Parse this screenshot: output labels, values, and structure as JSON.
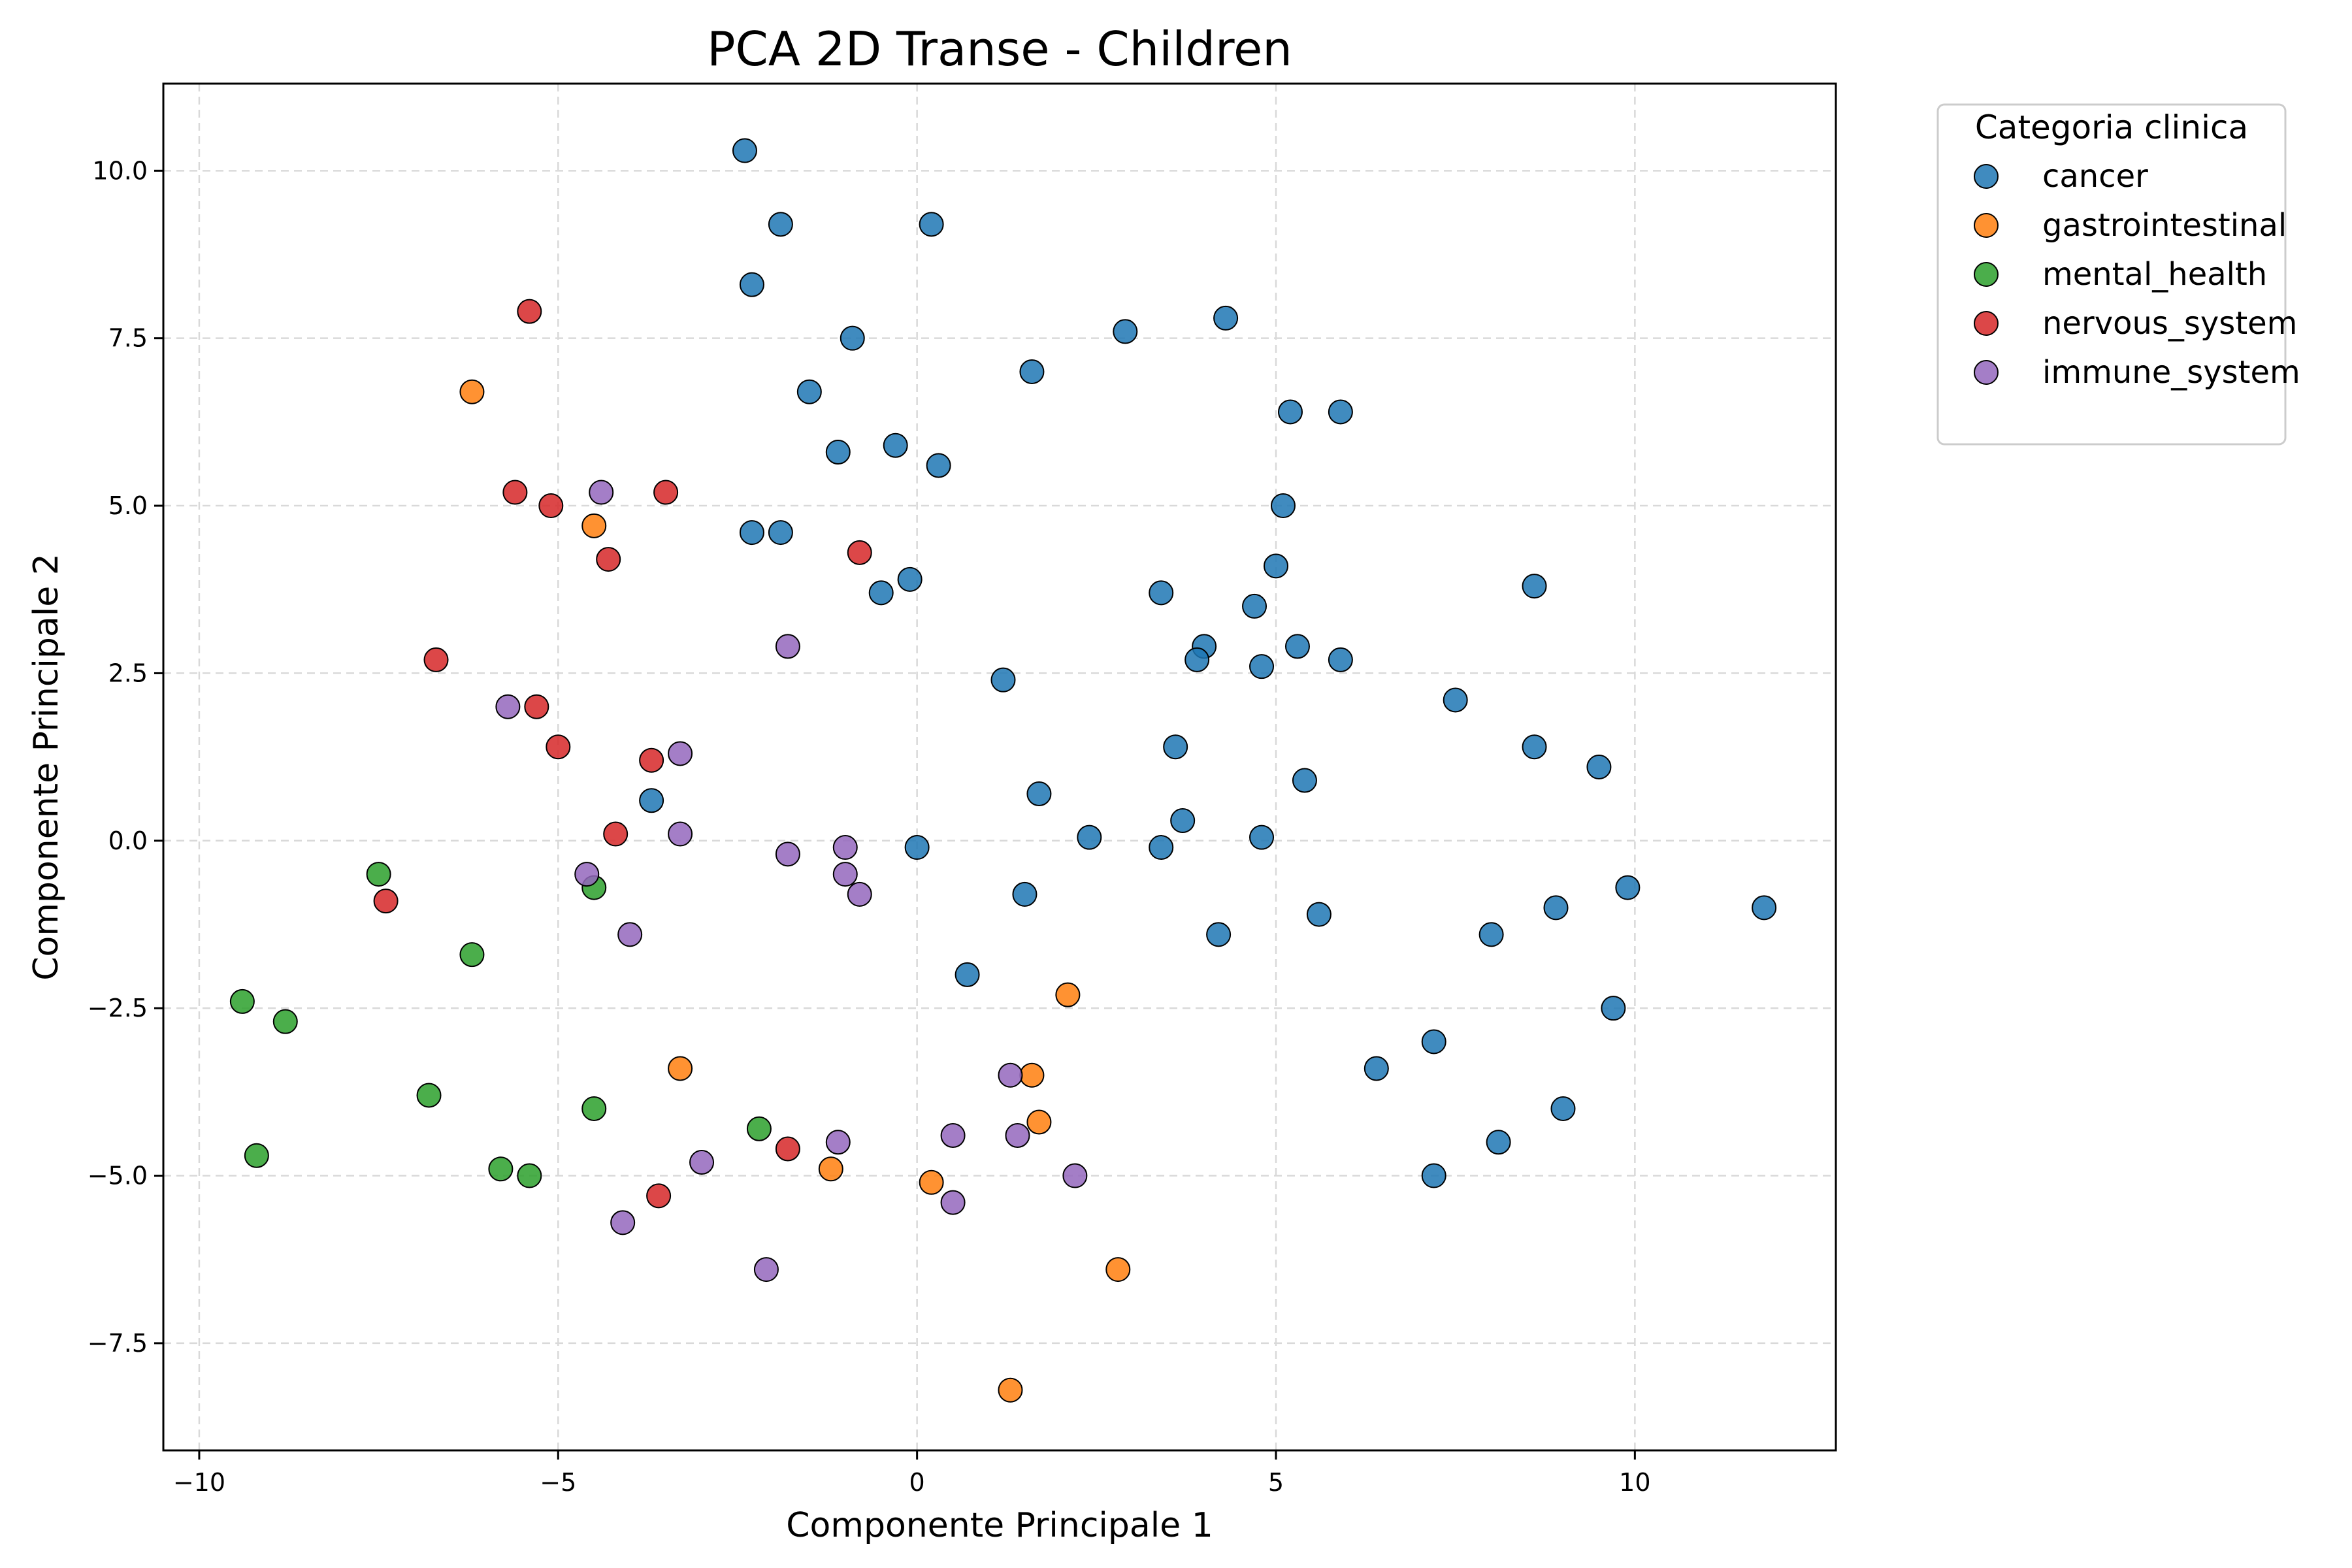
{
  "chart_data": {
    "type": "scatter",
    "title": "PCA 2D Transe - Children",
    "xlabel": "Componente Principale 1",
    "ylabel": "Componente Principale 2",
    "xlim": [
      -10.5,
      12.8
    ],
    "ylim": [
      -9.1,
      11.3
    ],
    "xticks": [
      -10,
      -5,
      0,
      5,
      10
    ],
    "yticks": [
      -7.5,
      -5.0,
      -2.5,
      0.0,
      2.5,
      5.0,
      7.5,
      10.0
    ],
    "xtick_labels": [
      "−10",
      "−5",
      "0",
      "5",
      "10"
    ],
    "ytick_labels": [
      "−7.5",
      "−5.0",
      "−2.5",
      "0.0",
      "2.5",
      "5.0",
      "7.5",
      "10.0"
    ],
    "grid": true,
    "legend": {
      "title": "Categoria clinica",
      "placement": "outside-top-right"
    },
    "series": [
      {
        "name": "cancer",
        "color": "#1f77b4",
        "points": [
          [
            -2.4,
            10.3
          ],
          [
            -1.9,
            9.2
          ],
          [
            0.2,
            9.2
          ],
          [
            -2.3,
            8.3
          ],
          [
            -0.9,
            7.5
          ],
          [
            2.9,
            7.6
          ],
          [
            4.3,
            7.8
          ],
          [
            1.6,
            7.0
          ],
          [
            -1.5,
            6.7
          ],
          [
            5.2,
            6.4
          ],
          [
            5.9,
            6.4
          ],
          [
            -0.3,
            5.9
          ],
          [
            -1.1,
            5.8
          ],
          [
            0.3,
            5.6
          ],
          [
            5.1,
            5.0
          ],
          [
            -2.3,
            4.6
          ],
          [
            -1.9,
            4.6
          ],
          [
            5.0,
            4.1
          ],
          [
            -0.1,
            3.9
          ],
          [
            -0.5,
            3.7
          ],
          [
            3.4,
            3.7
          ],
          [
            8.6,
            3.8
          ],
          [
            4.7,
            3.5
          ],
          [
            4.0,
            2.9
          ],
          [
            3.9,
            2.7
          ],
          [
            5.3,
            2.9
          ],
          [
            5.9,
            2.7
          ],
          [
            4.8,
            2.6
          ],
          [
            1.2,
            2.4
          ],
          [
            7.5,
            2.1
          ],
          [
            3.6,
            1.4
          ],
          [
            8.6,
            1.4
          ],
          [
            9.5,
            1.1
          ],
          [
            5.4,
            0.9
          ],
          [
            1.7,
            0.7
          ],
          [
            -3.7,
            0.6
          ],
          [
            3.7,
            0.3
          ],
          [
            2.4,
            0.05
          ],
          [
            4.8,
            0.05
          ],
          [
            0.0,
            -0.1
          ],
          [
            3.4,
            -0.1
          ],
          [
            1.5,
            -0.8
          ],
          [
            9.9,
            -0.7
          ],
          [
            8.9,
            -1.0
          ],
          [
            11.8,
            -1.0
          ],
          [
            5.6,
            -1.1
          ],
          [
            4.2,
            -1.4
          ],
          [
            8.0,
            -1.4
          ],
          [
            0.7,
            -2.0
          ],
          [
            9.7,
            -2.5
          ],
          [
            7.2,
            -3.0
          ],
          [
            6.4,
            -3.4
          ],
          [
            9.0,
            -4.0
          ],
          [
            8.1,
            -4.5
          ],
          [
            7.2,
            -5.0
          ]
        ]
      },
      {
        "name": "gastrointestinal",
        "color": "#ff7f0e",
        "points": [
          [
            -6.2,
            6.7
          ],
          [
            -4.5,
            4.7
          ],
          [
            2.1,
            -2.3
          ],
          [
            -3.3,
            -3.4
          ],
          [
            1.6,
            -3.5
          ],
          [
            1.7,
            -4.2
          ],
          [
            -1.2,
            -4.9
          ],
          [
            0.2,
            -5.1
          ],
          [
            2.8,
            -6.4
          ],
          [
            1.3,
            -8.2
          ]
        ]
      },
      {
        "name": "mental_health",
        "color": "#2ca02c",
        "points": [
          [
            -7.5,
            -0.5
          ],
          [
            -4.5,
            -0.7
          ],
          [
            -6.2,
            -1.7
          ],
          [
            -9.4,
            -2.4
          ],
          [
            -8.8,
            -2.7
          ],
          [
            -6.8,
            -3.8
          ],
          [
            -4.5,
            -4.0
          ],
          [
            -2.2,
            -4.3
          ],
          [
            -9.2,
            -4.7
          ],
          [
            -5.8,
            -4.9
          ],
          [
            -5.4,
            -5.0
          ]
        ]
      },
      {
        "name": "nervous_system",
        "color": "#d62728",
        "points": [
          [
            -5.4,
            7.9
          ],
          [
            -5.6,
            5.2
          ],
          [
            -5.1,
            5.0
          ],
          [
            -3.5,
            5.2
          ],
          [
            -4.3,
            4.2
          ],
          [
            -0.8,
            4.3
          ],
          [
            -6.7,
            2.7
          ],
          [
            -5.3,
            2.0
          ],
          [
            -5.0,
            1.4
          ],
          [
            -3.7,
            1.2
          ],
          [
            -4.2,
            0.1
          ],
          [
            -7.4,
            -0.9
          ],
          [
            -1.8,
            -4.6
          ],
          [
            -3.6,
            -5.3
          ]
        ]
      },
      {
        "name": "immune_system",
        "color": "#9467bd",
        "points": [
          [
            -4.4,
            5.2
          ],
          [
            -1.8,
            2.9
          ],
          [
            -5.7,
            2.0
          ],
          [
            -3.3,
            1.3
          ],
          [
            -3.3,
            0.1
          ],
          [
            -1.0,
            -0.1
          ],
          [
            -1.8,
            -0.2
          ],
          [
            -4.6,
            -0.5
          ],
          [
            -1.0,
            -0.5
          ],
          [
            -0.8,
            -0.8
          ],
          [
            -4.0,
            -1.4
          ],
          [
            1.3,
            -3.5
          ],
          [
            0.5,
            -4.4
          ],
          [
            1.4,
            -4.4
          ],
          [
            -1.1,
            -4.5
          ],
          [
            -3.0,
            -4.8
          ],
          [
            2.2,
            -5.0
          ],
          [
            0.5,
            -5.4
          ],
          [
            -4.1,
            -5.7
          ],
          [
            -2.1,
            -6.4
          ]
        ]
      }
    ]
  }
}
